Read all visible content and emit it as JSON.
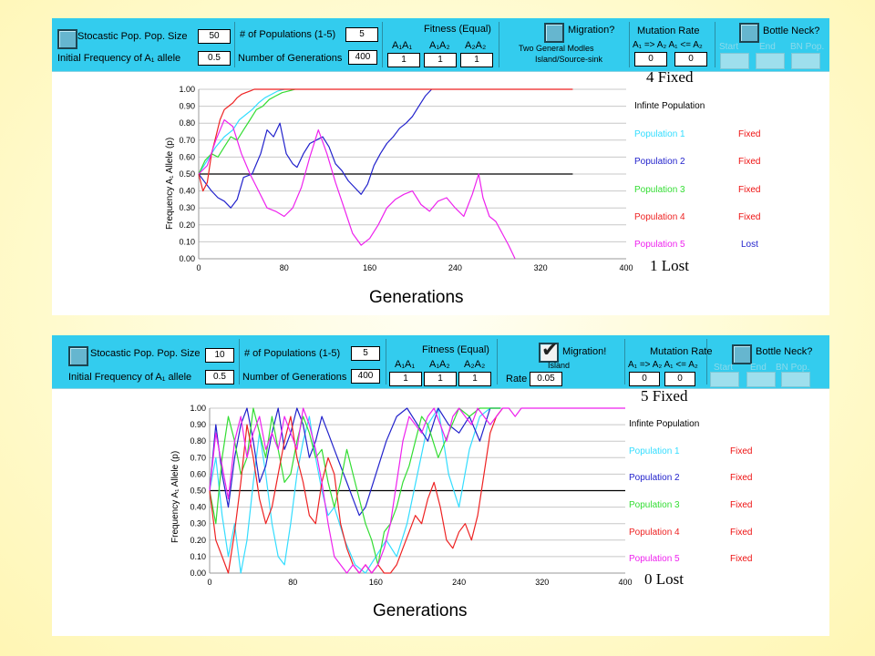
{
  "panels": [
    {
      "controls": {
        "stochastic_label": "Stocastic Pop. Pop. Size",
        "pop_size": "50",
        "initial_freq_label": "Initial  Frequency  of A₁ allele",
        "initial_freq": "0.5",
        "num_pops_label": "# of Populations (1-5)",
        "num_pops": "5",
        "num_gen_label": "Number of Generations",
        "num_gen": "400",
        "fitness_title": "Fitness  (Equal)",
        "fitness_cols": [
          "A₁A₁",
          "A₁A₂",
          "A₂A₂"
        ],
        "fitness_vals": [
          "1",
          "1",
          "1"
        ],
        "migration_label": "Migration?",
        "migration_checked": false,
        "migration_sub1": "Two General Modles",
        "migration_sub2": "Island/Source-sink",
        "mutation_title": "Mutation Rate",
        "mutation_sub": "A₁ => A₂ A₁ <= A₂",
        "mutation_vals": [
          "0",
          "0"
        ],
        "bottleneck_label": "Bottle Neck?",
        "bn_labels": [
          "Start",
          "End",
          "BN Pop."
        ]
      },
      "notes": {
        "fixed": "4  Fixed",
        "lost": "1   Lost"
      },
      "legend": [
        {
          "name": "Infinte Population",
          "status": ""
        },
        {
          "name": "Population 1",
          "status": "Fixed"
        },
        {
          "name": "Population 2",
          "status": "Fixed"
        },
        {
          "name": "Population 3",
          "status": "Fixed"
        },
        {
          "name": "Population 4",
          "status": "Fixed"
        },
        {
          "name": "Population 5",
          "status": "Lost"
        }
      ]
    },
    {
      "controls": {
        "stochastic_label": "Stocastic Pop. Pop. Size",
        "pop_size": "10",
        "initial_freq_label": "Initial  Frequency  of A₁ allele",
        "initial_freq": "0.5",
        "num_pops_label": "# of Populations (1-5)",
        "num_pops": "5",
        "num_gen_label": "Number of Generations",
        "num_gen": "400",
        "fitness_title": "Fitness  (Equal)",
        "fitness_cols": [
          "A₁A₁",
          "A₁A₂",
          "A₂A₂"
        ],
        "fitness_vals": [
          "1",
          "1",
          "1"
        ],
        "migration_label": "Migration!",
        "migration_checked": true,
        "migration_sub1": "Island",
        "rate_label": "Rate",
        "rate": "0.05",
        "mutation_title": "Mutation Rate",
        "mutation_sub": "A₁ => A₂ A₁ <= A₂",
        "mutation_vals": [
          "0",
          "0"
        ],
        "bottleneck_label": "Bottle Neck?",
        "bn_labels": [
          "Start",
          "End",
          "BN Pop."
        ]
      },
      "notes": {
        "fixed": "5   Fixed",
        "lost": "0   Lost"
      },
      "legend": [
        {
          "name": "Infinte Population",
          "status": ""
        },
        {
          "name": "Population 1",
          "status": "Fixed"
        },
        {
          "name": "Population 2",
          "status": "Fixed"
        },
        {
          "name": "Population 3",
          "status": "Fixed"
        },
        {
          "name": "Population 4",
          "status": "Fixed"
        },
        {
          "name": "Population 5",
          "status": "Fixed"
        }
      ]
    }
  ],
  "colors": {
    "infinite": "#000000",
    "pop1": "#33ddff",
    "pop2": "#2222cc",
    "pop3": "#33dd33",
    "pop4": "#ee2222",
    "pop5": "#ee22ee",
    "fixed": "#ee1111",
    "lost": "#2222cc",
    "control_bar": "#33ccee"
  },
  "chart_data": [
    {
      "type": "line",
      "xlabel": "Generations",
      "ylabel": "Frequency A₁ Allele (p)",
      "xlim": [
        0,
        400
      ],
      "ylim": [
        0,
        1
      ],
      "xticks": [
        "0",
        "80",
        "160",
        "240",
        "320",
        "400"
      ],
      "yticks": [
        "0.00",
        "0.10",
        "0.20",
        "0.30",
        "0.40",
        "0.50",
        "0.60",
        "0.70",
        "0.80",
        "0.90",
        "1.00"
      ],
      "grid": true,
      "series": [
        {
          "name": "Infinte Population",
          "color_key": "infinite",
          "x": [
            0,
            350
          ],
          "y": [
            0.5,
            0.5
          ]
        },
        {
          "name": "Population 1",
          "color_key": "pop1",
          "x": [
            0,
            8,
            16,
            24,
            32,
            38,
            44,
            50,
            56,
            62,
            68,
            74,
            80
          ],
          "y": [
            0.5,
            0.58,
            0.66,
            0.72,
            0.76,
            0.82,
            0.85,
            0.88,
            0.92,
            0.95,
            0.97,
            0.99,
            1.0
          ]
        },
        {
          "name": "Population 2",
          "color_key": "pop2",
          "x": [
            0,
            6,
            12,
            18,
            24,
            30,
            36,
            42,
            50,
            58,
            64,
            70,
            76,
            82,
            88,
            92,
            98,
            104,
            110,
            116,
            122,
            128,
            134,
            140,
            146,
            152,
            158,
            164,
            170,
            176,
            182,
            188,
            194,
            200,
            206,
            212,
            218
          ],
          "y": [
            0.5,
            0.45,
            0.4,
            0.36,
            0.34,
            0.3,
            0.35,
            0.48,
            0.5,
            0.62,
            0.76,
            0.72,
            0.8,
            0.62,
            0.56,
            0.54,
            0.62,
            0.68,
            0.7,
            0.72,
            0.66,
            0.56,
            0.52,
            0.46,
            0.42,
            0.38,
            0.44,
            0.55,
            0.62,
            0.68,
            0.72,
            0.77,
            0.8,
            0.84,
            0.9,
            0.96,
            1.0
          ]
        },
        {
          "name": "Population 3",
          "color_key": "pop3",
          "x": [
            0,
            6,
            12,
            18,
            24,
            30,
            36,
            42,
            48,
            54,
            60,
            66,
            72,
            78,
            84,
            90
          ],
          "y": [
            0.5,
            0.58,
            0.62,
            0.6,
            0.66,
            0.72,
            0.7,
            0.76,
            0.82,
            0.88,
            0.9,
            0.94,
            0.96,
            0.98,
            0.99,
            1.0
          ]
        },
        {
          "name": "Population 4",
          "color_key": "pop4",
          "x": [
            0,
            4,
            8,
            12,
            16,
            20,
            24,
            28,
            32,
            36,
            40,
            44,
            48,
            52,
            56,
            60,
            64,
            68,
            72,
            350
          ],
          "y": [
            0.5,
            0.4,
            0.45,
            0.62,
            0.72,
            0.82,
            0.88,
            0.9,
            0.92,
            0.95,
            0.97,
            0.98,
            0.99,
            1.0,
            1.0,
            1.0,
            1.0,
            1.0,
            1.0,
            1.0
          ]
        },
        {
          "name": "Population 5",
          "color_key": "pop5",
          "x": [
            0,
            8,
            16,
            24,
            32,
            40,
            48,
            56,
            64,
            72,
            80,
            88,
            96,
            104,
            112,
            120,
            128,
            136,
            144,
            152,
            160,
            168,
            176,
            184,
            192,
            200,
            208,
            216,
            224,
            232,
            240,
            248,
            256,
            262,
            266,
            272,
            278,
            284,
            290,
            296
          ],
          "y": [
            0.5,
            0.55,
            0.7,
            0.82,
            0.78,
            0.62,
            0.5,
            0.4,
            0.3,
            0.28,
            0.25,
            0.3,
            0.42,
            0.6,
            0.76,
            0.62,
            0.45,
            0.3,
            0.15,
            0.08,
            0.12,
            0.2,
            0.3,
            0.35,
            0.38,
            0.4,
            0.32,
            0.28,
            0.34,
            0.36,
            0.3,
            0.25,
            0.38,
            0.5,
            0.36,
            0.25,
            0.22,
            0.15,
            0.08,
            0.0
          ]
        }
      ]
    },
    {
      "type": "line",
      "xlabel": "Generations",
      "ylabel": "Frequency A₁ Allele (p)",
      "xlim": [
        0,
        400
      ],
      "ylim": [
        0,
        1
      ],
      "xticks": [
        "0",
        "80",
        "160",
        "240",
        "320",
        "400"
      ],
      "yticks": [
        "0.00",
        "0.10",
        "0.20",
        "0.30",
        "0.40",
        "0.50",
        "0.60",
        "0.70",
        "0.80",
        "0.90",
        "1.00"
      ],
      "grid": true,
      "series": [
        {
          "name": "Infinte Population",
          "color_key": "infinite",
          "x": [
            0,
            400
          ],
          "y": [
            0.5,
            0.5
          ]
        },
        {
          "name": "Population 1",
          "color_key": "pop1",
          "x": [
            0,
            6,
            12,
            18,
            24,
            30,
            36,
            42,
            48,
            54,
            60,
            66,
            72,
            78,
            84,
            90,
            96,
            102,
            108,
            114,
            120,
            130,
            140,
            150,
            160,
            170,
            180,
            190,
            200,
            210,
            220,
            230,
            240,
            250,
            260,
            270,
            280
          ],
          "y": [
            0.5,
            0.7,
            0.35,
            0.1,
            0.3,
            0.0,
            0.2,
            0.55,
            0.85,
            0.6,
            0.3,
            0.1,
            0.05,
            0.3,
            0.6,
            0.8,
            0.95,
            0.7,
            0.5,
            0.35,
            0.4,
            0.2,
            0.05,
            0.0,
            0.1,
            0.2,
            0.1,
            0.3,
            0.6,
            0.9,
            1.0,
            0.6,
            0.4,
            0.75,
            0.95,
            1.0,
            1.0
          ]
        },
        {
          "name": "Population 2",
          "color_key": "pop2",
          "x": [
            0,
            6,
            12,
            18,
            24,
            30,
            36,
            42,
            48,
            54,
            60,
            66,
            72,
            78,
            84,
            90,
            96,
            102,
            108,
            114,
            120,
            126,
            132,
            138,
            144,
            150,
            160,
            170,
            180,
            190,
            200,
            210,
            220,
            230,
            240,
            250,
            260,
            270,
            280
          ],
          "y": [
            0.5,
            0.9,
            0.6,
            0.4,
            0.7,
            0.9,
            1.0,
            0.8,
            0.55,
            0.65,
            0.85,
            1.0,
            0.75,
            0.85,
            1.0,
            0.9,
            0.7,
            0.8,
            0.95,
            0.85,
            0.75,
            0.65,
            0.55,
            0.45,
            0.35,
            0.4,
            0.6,
            0.8,
            0.95,
            1.0,
            0.9,
            0.8,
            1.0,
            0.9,
            0.85,
            0.95,
            0.8,
            1.0,
            1.0
          ]
        },
        {
          "name": "Population 3",
          "color_key": "pop3",
          "x": [
            0,
            6,
            12,
            18,
            24,
            30,
            36,
            42,
            48,
            54,
            60,
            66,
            72,
            78,
            84,
            90,
            96,
            102,
            108,
            114,
            120,
            126,
            132,
            138,
            144,
            150,
            156,
            162,
            168,
            174,
            180,
            186,
            192,
            198,
            204,
            210,
            220,
            230,
            240,
            250,
            260,
            270,
            280
          ],
          "y": [
            0.5,
            0.3,
            0.7,
            0.95,
            0.8,
            0.6,
            0.7,
            1.0,
            0.85,
            0.7,
            0.95,
            0.75,
            0.55,
            0.6,
            0.8,
            0.95,
            0.85,
            0.7,
            0.75,
            0.55,
            0.4,
            0.55,
            0.75,
            0.6,
            0.45,
            0.3,
            0.2,
            0.05,
            0.25,
            0.3,
            0.4,
            0.55,
            0.65,
            0.8,
            0.95,
            0.9,
            0.7,
            0.85,
            1.0,
            0.95,
            1.0,
            1.0,
            1.0
          ]
        },
        {
          "name": "Population 4",
          "color_key": "pop4",
          "x": [
            0,
            6,
            12,
            18,
            24,
            30,
            36,
            42,
            48,
            54,
            60,
            66,
            72,
            78,
            84,
            90,
            96,
            102,
            108,
            114,
            120,
            126,
            132,
            138,
            144,
            150,
            156,
            162,
            168,
            174,
            180,
            186,
            192,
            198,
            204,
            210,
            216,
            222,
            228,
            234,
            240,
            246,
            252,
            258,
            264,
            270,
            276,
            282
          ],
          "y": [
            0.5,
            0.2,
            0.1,
            0.0,
            0.25,
            0.55,
            0.9,
            0.7,
            0.45,
            0.3,
            0.4,
            0.6,
            0.8,
            0.95,
            0.7,
            0.55,
            0.35,
            0.3,
            0.55,
            0.7,
            0.6,
            0.3,
            0.15,
            0.05,
            0.0,
            0.05,
            0.0,
            0.05,
            0.0,
            0.0,
            0.05,
            0.15,
            0.25,
            0.35,
            0.3,
            0.45,
            0.55,
            0.4,
            0.2,
            0.15,
            0.25,
            0.3,
            0.2,
            0.35,
            0.6,
            0.85,
            0.95,
            1.0
          ]
        },
        {
          "name": "Population 5",
          "color_key": "pop5",
          "x": [
            0,
            6,
            12,
            18,
            24,
            30,
            36,
            42,
            48,
            54,
            60,
            66,
            72,
            78,
            84,
            90,
            96,
            102,
            108,
            114,
            120,
            126,
            132,
            138,
            144,
            150,
            156,
            162,
            168,
            174,
            180,
            186,
            192,
            198,
            204,
            210,
            216,
            222,
            228,
            234,
            240,
            246,
            252,
            258,
            264,
            270,
            276,
            282,
            288,
            294,
            300,
            400
          ],
          "y": [
            0.5,
            0.85,
            0.65,
            0.45,
            0.8,
            0.95,
            0.7,
            0.85,
            0.95,
            0.75,
            0.85,
            0.75,
            0.95,
            0.85,
            0.75,
            1.0,
            0.9,
            0.75,
            0.55,
            0.3,
            0.1,
            0.05,
            0.0,
            0.05,
            0.0,
            0.05,
            0.0,
            0.05,
            0.15,
            0.3,
            0.55,
            0.8,
            0.95,
            0.9,
            0.85,
            0.95,
            1.0,
            0.9,
            0.8,
            0.95,
            1.0,
            0.95,
            0.9,
            1.0,
            0.95,
            0.9,
            0.95,
            1.0,
            1.0,
            0.95,
            1.0,
            1.0
          ]
        }
      ]
    }
  ]
}
